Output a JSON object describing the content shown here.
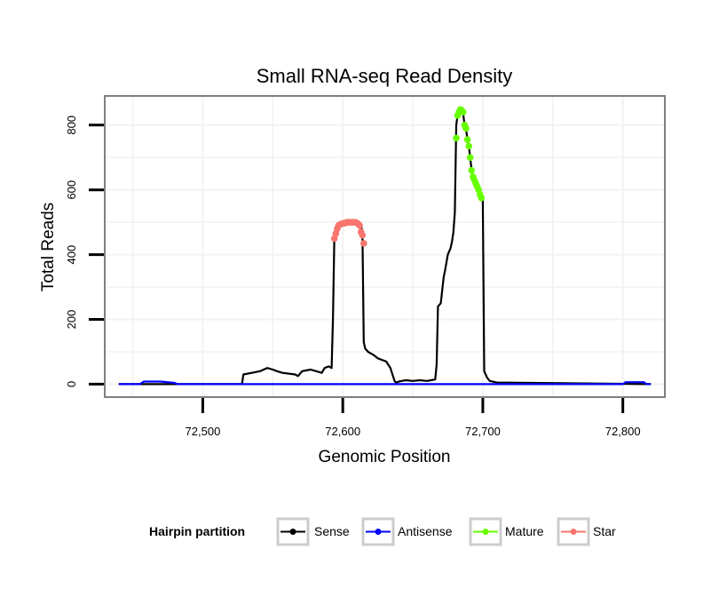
{
  "chart_data": {
    "type": "line",
    "title": "Small RNA-seq Read Density",
    "xlabel": "Genomic Position",
    "ylabel": "Total Reads",
    "xlim": [
      72430,
      72830
    ],
    "ylim": [
      -40,
      890
    ],
    "xticks": [
      {
        "value": 72500,
        "label": "72,500"
      },
      {
        "value": 72600,
        "label": "72,600"
      },
      {
        "value": 72700,
        "label": "72,700"
      },
      {
        "value": 72800,
        "label": "72,800"
      }
    ],
    "yticks": [
      {
        "value": 0,
        "label": "0"
      },
      {
        "value": 200,
        "label": "200"
      },
      {
        "value": 400,
        "label": "400"
      },
      {
        "value": 600,
        "label": "600"
      },
      {
        "value": 800,
        "label": "800"
      }
    ],
    "grid": true,
    "legend": {
      "title": "Hairpin partition",
      "position": "bottom",
      "entries": [
        {
          "name": "Sense",
          "color": "#000000"
        },
        {
          "name": "Antisense",
          "color": "#0000ff"
        },
        {
          "name": "Mature",
          "color": "#66ff00"
        },
        {
          "name": "Star",
          "color": "#f8766d"
        }
      ]
    },
    "series": [
      {
        "name": "Sense",
        "color": "#000000",
        "x": [
          72440,
          72528,
          72529,
          72535,
          72541,
          72546,
          72550,
          72553,
          72557,
          72566,
          72568,
          72571,
          72577,
          72581,
          72585,
          72587,
          72590,
          72592,
          72593,
          72594,
          72596,
          72598,
          72600,
          72604,
          72608,
          72612,
          72613,
          72614,
          72615,
          72616,
          72618,
          72620,
          72622,
          72625,
          72628,
          72631,
          72634,
          72637,
          72638,
          72640,
          72642,
          72645,
          72650,
          72655,
          72660,
          72663,
          72666,
          72667,
          72668,
          72670,
          72672,
          72673,
          72675,
          72677,
          72678,
          72679,
          72680,
          72681,
          72682,
          72683,
          72684,
          72685,
          72686,
          72687,
          72688,
          72689,
          72690,
          72691,
          72692,
          72693,
          72694,
          72695,
          72696,
          72697,
          72698,
          72699,
          72700,
          72701,
          72703,
          72705,
          72710,
          72820
        ],
        "y": [
          0,
          0,
          30,
          35,
          40,
          50,
          45,
          40,
          35,
          30,
          25,
          40,
          45,
          40,
          35,
          50,
          55,
          50,
          200,
          460,
          490,
          495,
          498,
          500,
          500,
          498,
          490,
          470,
          130,
          110,
          100,
          95,
          90,
          80,
          75,
          70,
          50,
          10,
          5,
          8,
          10,
          12,
          10,
          12,
          10,
          12,
          15,
          60,
          240,
          250,
          330,
          350,
          400,
          420,
          440,
          470,
          530,
          800,
          830,
          845,
          848,
          845,
          835,
          800,
          790,
          755,
          735,
          700,
          660,
          640,
          630,
          620,
          610,
          600,
          585,
          575,
          570,
          40,
          20,
          10,
          5,
          0
        ]
      },
      {
        "name": "Antisense",
        "color": "#0000ff",
        "x": [
          72440,
          72455,
          72458,
          72470,
          72480,
          72482,
          72800,
          72802,
          72815,
          72817,
          72820
        ],
        "y": [
          0,
          0,
          8,
          8,
          4,
          0,
          0,
          6,
          6,
          0,
          0
        ]
      },
      {
        "name": "Mature",
        "color": "#66ff00",
        "points": {
          "x": [
            72681,
            72682,
            72683,
            72684,
            72685,
            72686,
            72687,
            72688,
            72689,
            72690,
            72691,
            72692,
            72693,
            72694,
            72695,
            72696,
            72697,
            72698,
            72699
          ],
          "y": [
            760,
            830,
            840,
            848,
            845,
            840,
            800,
            790,
            755,
            735,
            700,
            660,
            640,
            630,
            620,
            610,
            600,
            585,
            575
          ]
        }
      },
      {
        "name": "Star",
        "color": "#f8766d",
        "points": {
          "x": [
            72594,
            72595,
            72596,
            72597,
            72598,
            72599,
            72600,
            72601,
            72602,
            72603,
            72604,
            72605,
            72606,
            72607,
            72608,
            72609,
            72610,
            72611,
            72612,
            72613,
            72614,
            72615
          ],
          "y": [
            450,
            465,
            480,
            490,
            493,
            495,
            496,
            497,
            498,
            500,
            500,
            500,
            500,
            500,
            500,
            500,
            498,
            495,
            490,
            470,
            460,
            435
          ]
        }
      }
    ]
  }
}
